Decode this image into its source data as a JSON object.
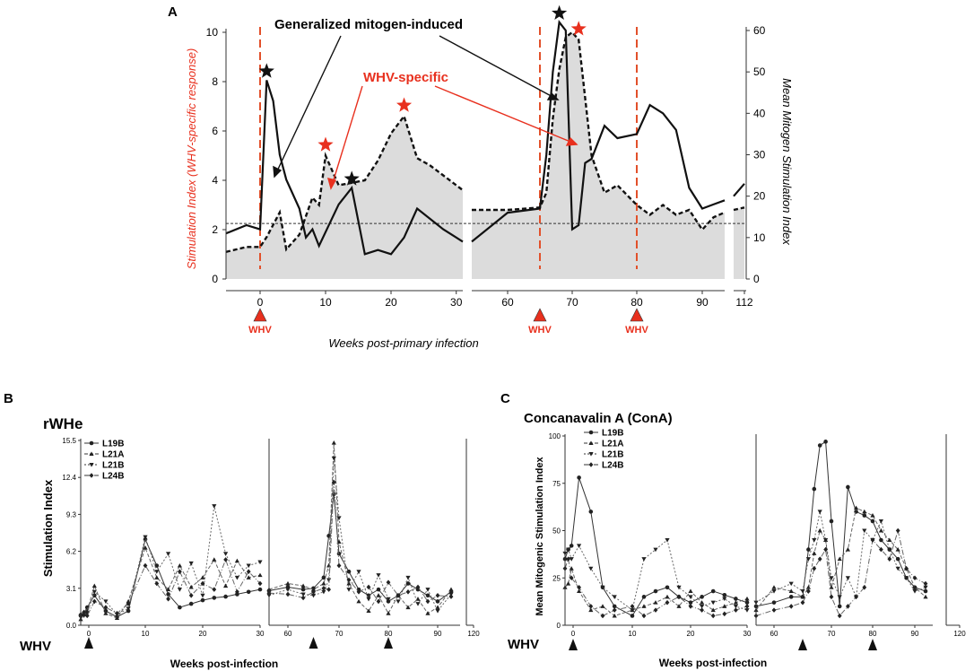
{
  "colors": {
    "red": "#e8301e",
    "black": "#111111",
    "shade": "#dcdcdc",
    "orange_dash": "#e2502a",
    "gray": "#888888"
  },
  "chart_data": [
    {
      "panel": "A",
      "type": "line",
      "title": "",
      "xlabel": "Weeks post-primary infection",
      "ylabel_left": "Stimulation Index (WHV-specific response)",
      "ylabel_right": "Mean Mitogen Stimulation Index",
      "ylim_left": [
        0,
        10.5
      ],
      "ylim_right": [
        0,
        63
      ],
      "yticks_left": [
        "0",
        "2",
        "4",
        "6",
        "8",
        "10"
      ],
      "yticks_right": [
        "0",
        "10",
        "20",
        "30",
        "40",
        "50",
        "60"
      ],
      "xticks": [
        "0",
        "10",
        "20",
        "30",
        "60",
        "70",
        "80",
        "90",
        "112"
      ],
      "cutoff_line": 2.25,
      "whv_label": "WHV",
      "whv_weeks": [
        0,
        65,
        80
      ],
      "annotation_mitogen": "Generalized mitogen-induced",
      "annotation_specific": "WHV-specific",
      "star_black_weeks": [
        1,
        14,
        68
      ],
      "star_red_weeks": [
        10,
        22,
        71
      ],
      "series": [
        {
          "name": "WHV-specific stimulation index (left axis, dashed)",
          "x": [
            -5,
            -2,
            0,
            1,
            3,
            4,
            6,
            8,
            9,
            10,
            12,
            14,
            16,
            18,
            20,
            22,
            24,
            26,
            28,
            31,
            54,
            60,
            65,
            66,
            67,
            68,
            69,
            70,
            71,
            73,
            75,
            77,
            80,
            82,
            84,
            86,
            88,
            90,
            93,
            96,
            109,
            112
          ],
          "y": [
            1.1,
            1.3,
            1.3,
            1.7,
            2.7,
            1.2,
            1.8,
            3.3,
            3.0,
            5.0,
            3.8,
            3.9,
            4.0,
            4.8,
            5.9,
            6.6,
            4.9,
            4.6,
            4.2,
            3.6,
            2.8,
            2.8,
            2.9,
            3.5,
            6.5,
            8.5,
            9.8,
            10.0,
            9.7,
            5.0,
            3.5,
            3.8,
            3.0,
            2.6,
            3.0,
            2.6,
            2.8,
            2.0,
            2.5,
            2.7,
            2.8,
            2.9
          ]
        },
        {
          "name": "Mean mitogen stimulation index (right axis, solid)",
          "x": [
            -5,
            -2,
            0,
            1,
            2,
            3,
            4,
            6,
            7,
            8,
            9,
            12,
            14,
            16,
            18,
            20,
            22,
            24,
            28,
            31,
            54,
            60,
            65,
            66,
            67,
            68,
            69,
            70,
            71,
            72,
            73,
            75,
            77,
            80,
            82,
            84,
            86,
            88,
            90,
            93,
            96,
            109,
            112
          ],
          "y": [
            11,
            13,
            12,
            48,
            43,
            30,
            24,
            17,
            10,
            12,
            8,
            18,
            22,
            6,
            7,
            6,
            10,
            17,
            12,
            9,
            9,
            16,
            17,
            30,
            50,
            62,
            60,
            12,
            13,
            28,
            29,
            37,
            34,
            35,
            42,
            40,
            36,
            22,
            17,
            18,
            19,
            20,
            23
          ]
        }
      ]
    },
    {
      "panel": "B",
      "type": "line",
      "title": "rWHe",
      "xlabel": "Weeks post-infection",
      "ylabel": "Stimulation Index",
      "ylim": [
        0,
        15.5
      ],
      "yticks": [
        "0.0",
        "3.1",
        "6.2",
        "9.3",
        "12.4",
        "15.5"
      ],
      "xticks": [
        "0",
        "10",
        "20",
        "30",
        "60",
        "70",
        "80",
        "90",
        "120"
      ],
      "whv_label": "WHV",
      "whv_weeks": [
        0,
        65,
        80
      ],
      "series": [
        {
          "name": "L19B",
          "x": [
            -5,
            -3,
            -1,
            1,
            3,
            5,
            7,
            10,
            12,
            14,
            16,
            18,
            20,
            22,
            24,
            26,
            28,
            30,
            55,
            60,
            63,
            65,
            67,
            68,
            69,
            70,
            72,
            74,
            76,
            78,
            80,
            82,
            84,
            86,
            88,
            90,
            93
          ],
          "y": [
            0.8,
            1.0,
            1.5,
            2.5,
            1.2,
            0.7,
            1.2,
            7.2,
            5.0,
            2.6,
            1.5,
            1.8,
            2.1,
            2.3,
            2.4,
            2.6,
            2.8,
            3.0,
            2.9,
            3.2,
            3.0,
            3.1,
            4.0,
            7.5,
            11.0,
            6.0,
            4.5,
            3.0,
            2.5,
            3.0,
            2.0,
            2.5,
            3.5,
            3.0,
            2.5,
            2.0,
            2.8
          ]
        },
        {
          "name": "L21A",
          "x": [
            -5,
            -3,
            -1,
            1,
            3,
            5,
            7,
            10,
            12,
            14,
            16,
            18,
            20,
            22,
            24,
            26,
            28,
            30,
            55,
            60,
            63,
            65,
            67,
            68,
            69,
            70,
            72,
            74,
            76,
            78,
            80,
            82,
            84,
            86,
            88,
            90,
            93
          ],
          "y": [
            0.5,
            0.9,
            1.2,
            3.3,
            1.0,
            0.6,
            2.0,
            6.5,
            4.0,
            3.0,
            5.0,
            3.2,
            4.0,
            5.5,
            3.3,
            5.4,
            4.0,
            4.2,
            3.0,
            3.5,
            3.3,
            3.0,
            3.5,
            5.0,
            15.3,
            7.0,
            3.5,
            2.0,
            1.2,
            2.5,
            1.0,
            2.5,
            1.5,
            2.2,
            1.0,
            1.5,
            3.0
          ]
        },
        {
          "name": "L21B",
          "x": [
            -5,
            -3,
            -1,
            1,
            3,
            5,
            7,
            10,
            12,
            14,
            16,
            18,
            20,
            22,
            24,
            26,
            28,
            30,
            55,
            60,
            63,
            65,
            67,
            68,
            69,
            70,
            72,
            74,
            76,
            78,
            80,
            82,
            84,
            86,
            88,
            90,
            93
          ],
          "y": [
            0.7,
            0.8,
            1.0,
            2.8,
            2.0,
            0.9,
            1.4,
            7.4,
            4.5,
            6.0,
            3.0,
            5.2,
            2.5,
            10.0,
            6.0,
            4.0,
            5.0,
            5.3,
            2.5,
            3.0,
            2.6,
            2.5,
            2.8,
            3.8,
            14.0,
            9.0,
            3.0,
            4.5,
            2.2,
            4.2,
            2.2,
            2.0,
            4.0,
            1.8,
            3.0,
            1.2,
            2.6
          ]
        },
        {
          "name": "L24B",
          "x": [
            -5,
            -3,
            -1,
            1,
            3,
            5,
            7,
            10,
            12,
            14,
            16,
            18,
            20,
            22,
            24,
            26,
            28,
            30,
            55,
            60,
            63,
            65,
            67,
            68,
            69,
            70,
            72,
            74,
            76,
            78,
            80,
            82,
            84,
            86,
            88,
            90,
            93
          ],
          "y": [
            0.9,
            1.1,
            0.8,
            2.0,
            1.5,
            1.0,
            1.8,
            5.0,
            3.5,
            2.2,
            4.5,
            2.5,
            3.5,
            3.0,
            5.5,
            2.8,
            4.5,
            3.5,
            2.7,
            2.6,
            2.3,
            2.8,
            3.1,
            3.0,
            12.0,
            5.0,
            3.8,
            2.8,
            3.2,
            2.0,
            3.6,
            2.5,
            2.8,
            3.2,
            2.0,
            2.5,
            2.4
          ]
        }
      ]
    },
    {
      "panel": "C",
      "type": "line",
      "title": "Concanavalin A (ConA)",
      "xlabel": "Weeks post-infection",
      "ylabel": "Mean Mitogenic Stimulation Index",
      "ylim": [
        0,
        100
      ],
      "yticks": [
        "0",
        "25",
        "50",
        "75",
        "100"
      ],
      "xticks": [
        "0",
        "10",
        "20",
        "30",
        "60",
        "70",
        "80",
        "90",
        "120"
      ],
      "whv_label": "WHV",
      "whv_weeks": [
        0,
        65,
        80
      ],
      "series": [
        {
          "name": "L19B",
          "x": [
            -5,
            -3,
            -1,
            1,
            3,
            5,
            7,
            10,
            12,
            14,
            16,
            18,
            20,
            22,
            24,
            26,
            28,
            30,
            55,
            60,
            63,
            65,
            66,
            67,
            68,
            69,
            70,
            72,
            74,
            76,
            78,
            80,
            82,
            84,
            86,
            88,
            90,
            93
          ],
          "y": [
            35,
            40,
            42,
            78,
            60,
            20,
            10,
            5,
            15,
            18,
            20,
            15,
            12,
            15,
            18,
            16,
            14,
            12,
            10,
            12,
            15,
            15,
            40,
            72,
            95,
            97,
            55,
            10,
            73,
            60,
            58,
            55,
            45,
            40,
            35,
            25,
            20,
            18
          ]
        },
        {
          "name": "L21A",
          "x": [
            -5,
            -3,
            -1,
            1,
            3,
            5,
            7,
            10,
            12,
            14,
            16,
            18,
            20,
            22,
            24,
            26,
            28,
            30,
            55,
            60,
            63,
            65,
            66,
            67,
            68,
            69,
            70,
            72,
            74,
            76,
            78,
            80,
            82,
            84,
            86,
            88,
            90,
            93
          ],
          "y": [
            20,
            22,
            30,
            18,
            8,
            10,
            5,
            8,
            10,
            12,
            15,
            10,
            18,
            12,
            8,
            10,
            12,
            14,
            8,
            20,
            18,
            15,
            20,
            38,
            50,
            45,
            20,
            35,
            40,
            62,
            60,
            58,
            50,
            45,
            40,
            30,
            20,
            15
          ]
        },
        {
          "name": "L21B",
          "x": [
            -5,
            -3,
            -1,
            1,
            3,
            5,
            7,
            10,
            12,
            14,
            16,
            18,
            20,
            22,
            24,
            26,
            28,
            30,
            55,
            60,
            63,
            65,
            66,
            67,
            68,
            69,
            70,
            72,
            74,
            76,
            78,
            80,
            82,
            84,
            86,
            88,
            90,
            93
          ],
          "y": [
            38,
            40,
            35,
            42,
            30,
            20,
            15,
            8,
            35,
            40,
            45,
            20,
            15,
            10,
            12,
            14,
            10,
            8,
            12,
            18,
            22,
            18,
            35,
            45,
            60,
            45,
            25,
            15,
            25,
            15,
            50,
            45,
            55,
            40,
            30,
            25,
            18,
            20
          ]
        },
        {
          "name": "L24B",
          "x": [
            -5,
            -3,
            -1,
            1,
            3,
            5,
            7,
            10,
            12,
            14,
            16,
            18,
            20,
            22,
            24,
            26,
            28,
            30,
            55,
            60,
            63,
            65,
            66,
            67,
            68,
            69,
            70,
            72,
            74,
            76,
            78,
            80,
            82,
            84,
            86,
            88,
            90,
            93
          ],
          "y": [
            30,
            35,
            25,
            20,
            10,
            5,
            8,
            10,
            5,
            8,
            12,
            15,
            10,
            8,
            5,
            6,
            8,
            10,
            5,
            8,
            10,
            12,
            18,
            30,
            35,
            40,
            15,
            5,
            10,
            15,
            20,
            45,
            40,
            35,
            50,
            30,
            25,
            22
          ]
        }
      ]
    }
  ]
}
